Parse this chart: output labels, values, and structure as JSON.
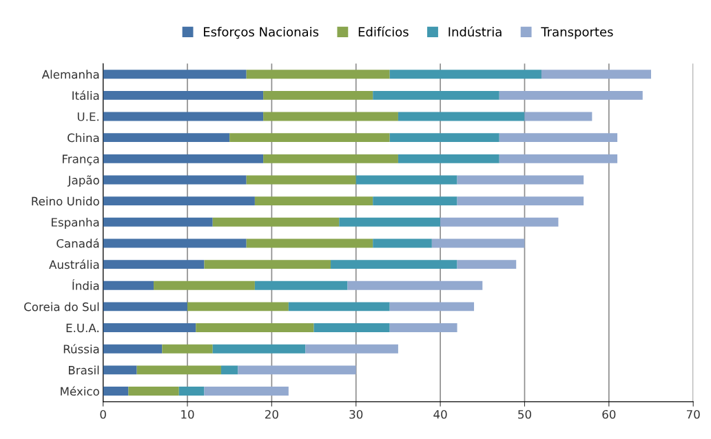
{
  "chart_data": {
    "type": "bar",
    "orientation": "horizontal",
    "stacked": true,
    "grid": "x",
    "legend": "top",
    "categories": [
      "Alemanha",
      "Itália",
      "U.E.",
      "China",
      "França",
      "Japão",
      "Reino Unido",
      "Espanha",
      "Canadá",
      "Austrália",
      "Índia",
      "Coreia do Sul",
      "E.U.A.",
      "Rússia",
      "Brasil",
      "México"
    ],
    "series": [
      {
        "name": "Esforços Nacionais",
        "color": "#4572a7",
        "values": [
          17,
          19,
          19,
          15,
          19,
          17,
          18,
          13,
          17,
          12,
          6,
          10,
          11,
          7,
          4,
          3
        ]
      },
      {
        "name": "Edifícios",
        "color": "#89a54e",
        "values": [
          17,
          13,
          16,
          19,
          16,
          13,
          14,
          15,
          15,
          15,
          12,
          12,
          14,
          6,
          10,
          6
        ]
      },
      {
        "name": "Indústria",
        "color": "#4198af",
        "values": [
          18,
          15,
          15,
          13,
          12,
          12,
          10,
          12,
          7,
          15,
          11,
          12,
          9,
          11,
          2,
          3
        ]
      },
      {
        "name": "Transportes",
        "color": "#93a9cf",
        "values": [
          13,
          17,
          8,
          14,
          14,
          15,
          15,
          14,
          11,
          7,
          16,
          10,
          8,
          11,
          14,
          10
        ]
      }
    ],
    "xlim": [
      0,
      70
    ],
    "xticks": [
      0,
      10,
      20,
      30,
      40,
      50,
      60,
      70
    ]
  }
}
